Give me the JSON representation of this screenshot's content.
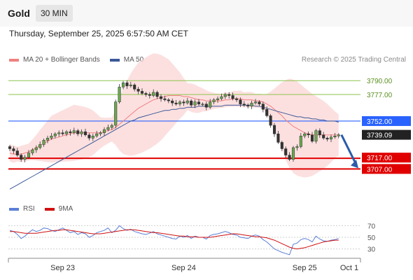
{
  "header": {
    "instrument": "Gold",
    "interval": "30 MIN",
    "datetime": "Thursday, September 25, 2025 6:57:50 AM CET"
  },
  "legend": {
    "ma20": "MA 20 + Bollinger Bands",
    "ma50": "MA 50",
    "copyright": "Research © 2025 Trading Central"
  },
  "rsi_legend": {
    "rsi": "RSI",
    "ma9": "9MA"
  },
  "colors": {
    "bollinger_fill": "#fbd5d5",
    "ma20": "#f08080",
    "ma50": "#3b5998",
    "resistance_green": "#8bc34a",
    "pivot_blue": "#2962ff",
    "support_red": "#e00000",
    "arrow": "#2a5caa",
    "rsi": "#5b7fd6",
    "rsi_ma": "#d01010"
  },
  "chart_data": {
    "type": "candlestick",
    "instrument": "Gold",
    "timeframe": "30 MIN",
    "price_range": [
      3675,
      3800
    ],
    "levels": [
      {
        "label": "3790.00",
        "value": 3790.0,
        "kind": "resistance"
      },
      {
        "label": "3777.00",
        "value": 3777.0,
        "kind": "resistance"
      },
      {
        "label": "3752.00",
        "value": 3752.0,
        "kind": "pivot"
      },
      {
        "label": "3739.09",
        "value": 3739.09,
        "kind": "last"
      },
      {
        "label": "3717.00",
        "value": 3717.0,
        "kind": "support"
      },
      {
        "label": "3707.00",
        "value": 3707.0,
        "kind": "support"
      }
    ],
    "forecast_arrow": {
      "from": 3739.09,
      "to": 3707.0,
      "direction": "down"
    },
    "x_ticks": [
      {
        "label": "Sep 23",
        "index": 14
      },
      {
        "label": "Sep 24",
        "index": 46
      },
      {
        "label": "Sep 25",
        "index": 78
      },
      {
        "label": "Oct 1",
        "index": 91
      }
    ],
    "candle_count": 88,
    "closes": [
      3726,
      3724,
      3720,
      3716,
      3718,
      3722,
      3725,
      3727,
      3730,
      3734,
      3736,
      3738,
      3740,
      3741,
      3740,
      3742,
      3741,
      3743,
      3740,
      3742,
      3739,
      3736,
      3738,
      3740,
      3741,
      3744,
      3746,
      3748,
      3770,
      3784,
      3788,
      3785,
      3786,
      3782,
      3780,
      3778,
      3777,
      3776,
      3779,
      3775,
      3773,
      3772,
      3771,
      3769,
      3768,
      3770,
      3769,
      3771,
      3767,
      3770,
      3768,
      3768,
      3765,
      3770,
      3772,
      3773,
      3775,
      3777,
      3776,
      3773,
      3772,
      3768,
      3767,
      3766,
      3769,
      3770,
      3768,
      3763,
      3757,
      3748,
      3740,
      3732,
      3726,
      3720,
      3716,
      3727,
      3728,
      3738,
      3740,
      3739,
      3733,
      3743,
      3739,
      3736,
      3735,
      3737,
      3738,
      3739.09
    ],
    "series": [
      {
        "name": "MA 20 + Bollinger Bands",
        "values": [
          3722,
          3721,
          3721,
          3721,
          3722,
          3723,
          3725,
          3727,
          3729,
          3731,
          3733,
          3735,
          3736,
          3737,
          3738,
          3739,
          3740,
          3741,
          3741,
          3741,
          3741,
          3741,
          3741,
          3741,
          3741,
          3742,
          3743,
          3744,
          3746,
          3749,
          3752,
          3755,
          3758,
          3761,
          3764,
          3766,
          3768,
          3770,
          3772,
          3773,
          3774,
          3775,
          3776,
          3776,
          3776,
          3776,
          3775,
          3775,
          3774,
          3773,
          3772,
          3772,
          3771,
          3771,
          3771,
          3771,
          3771,
          3772,
          3772,
          3773,
          3773,
          3773,
          3772,
          3772,
          3772,
          3771,
          3771,
          3770,
          3768,
          3766,
          3763,
          3760,
          3757,
          3753,
          3750,
          3747,
          3745,
          3743,
          3741,
          3740,
          3739,
          3739,
          3739,
          3739,
          3739,
          3739,
          3739,
          3739
        ]
      },
      {
        "name": "MA 50",
        "values": [
          3688,
          3690,
          3692,
          3694,
          3696,
          3698,
          3700,
          3702,
          3704,
          3706,
          3708,
          3710,
          3712,
          3714,
          3716,
          3718,
          3720,
          3722,
          3724,
          3726,
          3728,
          3730,
          3732,
          3734,
          3736,
          3738,
          3740,
          3742,
          3744,
          3746,
          3748,
          3750,
          3752,
          3753,
          3755,
          3756,
          3757,
          3758,
          3759,
          3760,
          3761,
          3762,
          3762,
          3763,
          3763,
          3764,
          3764,
          3765,
          3765,
          3765,
          3766,
          3766,
          3766,
          3766,
          3766,
          3766,
          3766,
          3767,
          3767,
          3767,
          3767,
          3767,
          3767,
          3767,
          3767,
          3766,
          3766,
          3765,
          3764,
          3763,
          3762,
          3761,
          3760,
          3759,
          3758,
          3757,
          3756,
          3756,
          3755,
          3755,
          3754,
          3754,
          3753,
          3753,
          3752,
          3752,
          3752,
          3751
        ]
      }
    ],
    "rsi": {
      "ticks": [
        70,
        50,
        30
      ],
      "range": [
        15,
        85
      ],
      "series": [
        {
          "name": "RSI",
          "values": [
            62,
            60,
            55,
            48,
            52,
            58,
            63,
            60,
            62,
            66,
            65,
            62,
            60,
            63,
            66,
            62,
            58,
            60,
            55,
            58,
            56,
            50,
            53,
            58,
            60,
            62,
            66,
            58,
            62,
            70,
            65,
            62,
            64,
            60,
            58,
            56,
            55,
            57,
            60,
            56,
            54,
            52,
            50,
            48,
            47,
            52,
            50,
            53,
            48,
            52,
            50,
            50,
            47,
            53,
            55,
            56,
            58,
            60,
            58,
            55,
            54,
            50,
            49,
            48,
            52,
            54,
            52,
            46,
            42,
            36,
            30,
            27,
            24,
            22,
            20,
            38,
            40,
            46,
            48,
            46,
            42,
            52,
            47,
            44,
            43,
            45,
            46,
            48
          ]
        },
        {
          "name": "9MA",
          "values": [
            60,
            60,
            59,
            58,
            57,
            57,
            57,
            57,
            58,
            59,
            60,
            61,
            62,
            62,
            63,
            63,
            62,
            61,
            60,
            59,
            58,
            57,
            56,
            56,
            56,
            57,
            58,
            59,
            60,
            61,
            62,
            63,
            63,
            63,
            62,
            61,
            60,
            59,
            58,
            58,
            57,
            56,
            55,
            54,
            53,
            52,
            52,
            51,
            51,
            51,
            50,
            50,
            50,
            50,
            51,
            52,
            53,
            54,
            55,
            56,
            56,
            55,
            54,
            53,
            52,
            51,
            51,
            50,
            49,
            47,
            45,
            42,
            39,
            36,
            33,
            31,
            30,
            31,
            32,
            34,
            36,
            38,
            40,
            42,
            43,
            44,
            45,
            45
          ]
        }
      ]
    }
  }
}
